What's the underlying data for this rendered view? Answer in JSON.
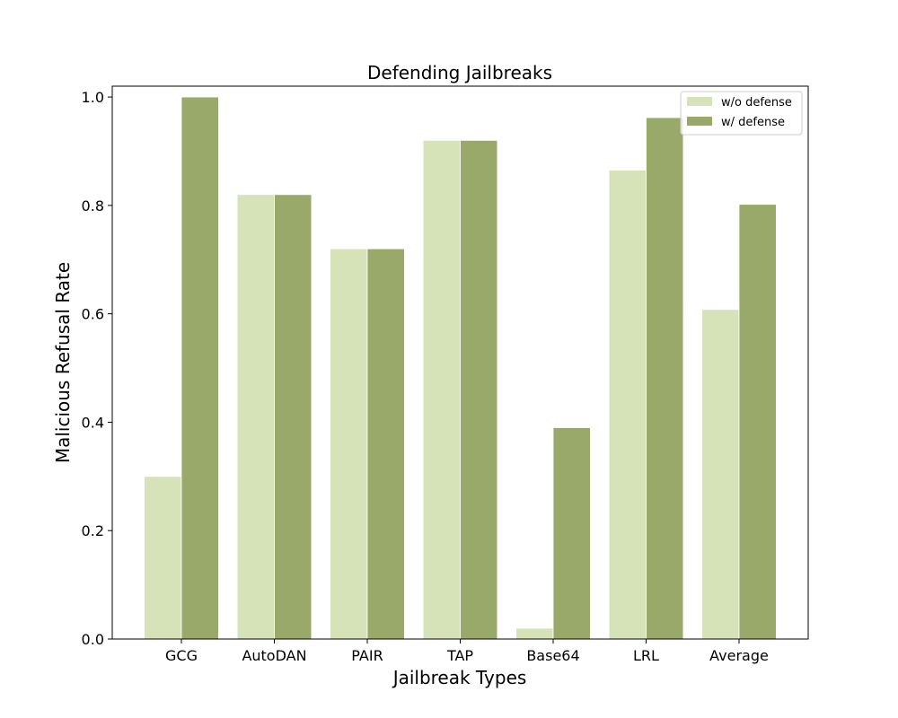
{
  "chart_data": {
    "type": "bar",
    "title": "Defending Jailbreaks",
    "xlabel": "Jailbreak Types",
    "ylabel": "Malicious Refusal Rate",
    "categories": [
      "GCG",
      "AutoDAN",
      "PAIR",
      "TAP",
      "Base64",
      "LRL",
      "Average"
    ],
    "series": [
      {
        "name": "w/o defense",
        "color": "#d6e3b8",
        "values": [
          0.3,
          0.82,
          0.72,
          0.92,
          0.02,
          0.865,
          0.608
        ]
      },
      {
        "name": "w/ defense",
        "color": "#98a96a",
        "values": [
          1.0,
          0.82,
          0.72,
          0.92,
          0.39,
          0.962,
          0.802
        ]
      }
    ],
    "ylim": [
      0,
      1.02
    ],
    "yticks": [
      "0.0",
      "0.2",
      "0.4",
      "0.6",
      "0.8",
      "1.0"
    ],
    "grid": false,
    "legend_position": "top-right"
  }
}
